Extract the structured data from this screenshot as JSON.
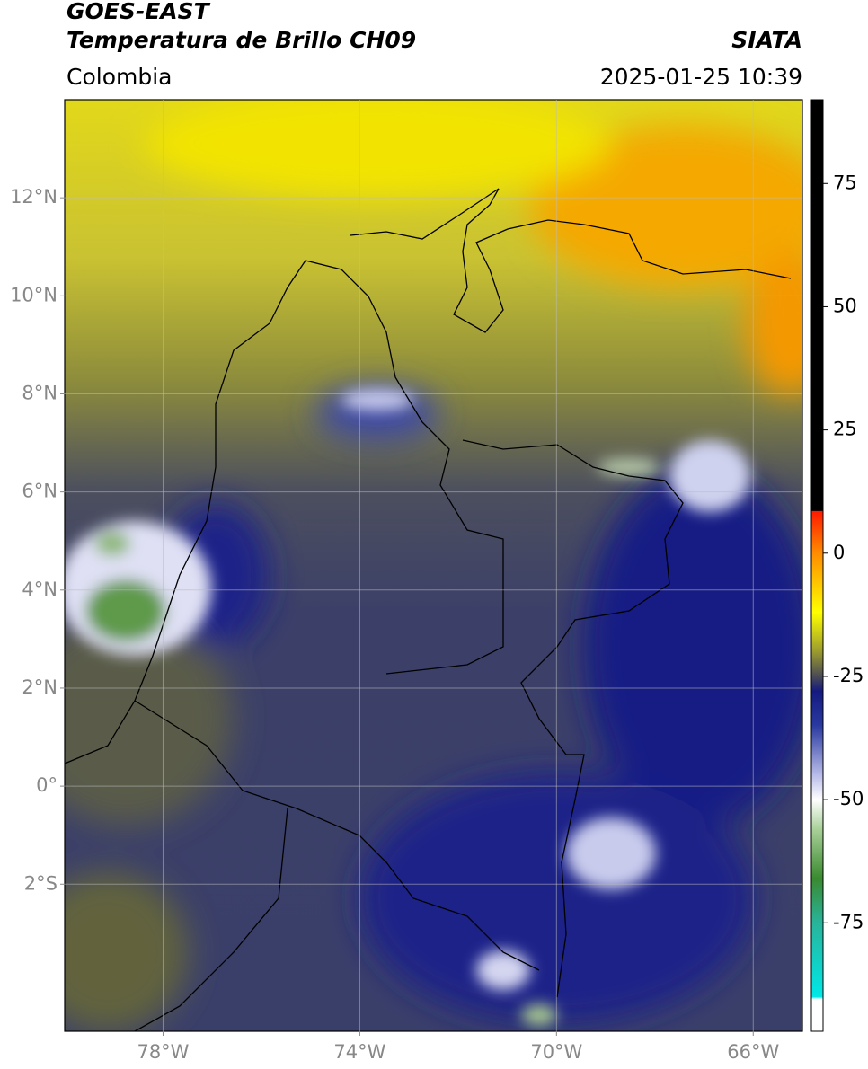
{
  "header": {
    "title": "GOES-EAST",
    "subtitle": "Temperatura de Brillo CH09",
    "brand": "SIATA",
    "region": "Colombia",
    "timestamp": "2025-01-25 10:39"
  },
  "map": {
    "xlim": [
      -80,
      -65
    ],
    "ylim": [
      -5,
      14
    ],
    "grid": true,
    "xticks": [
      {
        "value": -78,
        "label": "78°W"
      },
      {
        "value": -74,
        "label": "74°W"
      },
      {
        "value": -70,
        "label": "70°W"
      },
      {
        "value": -66,
        "label": "66°W"
      }
    ],
    "yticks": [
      {
        "value": 12,
        "label": "12°N"
      },
      {
        "value": 10,
        "label": "10°N"
      },
      {
        "value": 8,
        "label": "8°N"
      },
      {
        "value": 6,
        "label": "6°N"
      },
      {
        "value": 4,
        "label": "4°N"
      },
      {
        "value": 2,
        "label": "2°N"
      },
      {
        "value": 0,
        "label": "0°"
      },
      {
        "value": -2,
        "label": "2°S"
      }
    ]
  },
  "colorbar": {
    "lim": [
      -97,
      92
    ],
    "ticks": [
      75,
      50,
      25,
      0,
      -25,
      -50,
      -75
    ],
    "colormap": [
      {
        "value": 92,
        "color": "#000000"
      },
      {
        "value": 8.6,
        "color": "#000000"
      },
      {
        "value": 8.5,
        "color": "#ff1a00"
      },
      {
        "value": 0,
        "color": "#ff8c00"
      },
      {
        "value": -12,
        "color": "#ffff00"
      },
      {
        "value": -20,
        "color": "#9a9a30"
      },
      {
        "value": -25,
        "color": "#4a4a55"
      },
      {
        "value": -28,
        "color": "#141a80"
      },
      {
        "value": -35,
        "color": "#2a3aa0"
      },
      {
        "value": -45,
        "color": "#b8bce8"
      },
      {
        "value": -50,
        "color": "#ffffff"
      },
      {
        "value": -56,
        "color": "#a8d098"
      },
      {
        "value": -66,
        "color": "#3a8a30"
      },
      {
        "value": -75,
        "color": "#28b49a"
      },
      {
        "value": -90,
        "color": "#00e8e8"
      },
      {
        "value": -90.5,
        "color": "#ffffff"
      },
      {
        "value": -97,
        "color": "#ffffff"
      }
    ]
  }
}
